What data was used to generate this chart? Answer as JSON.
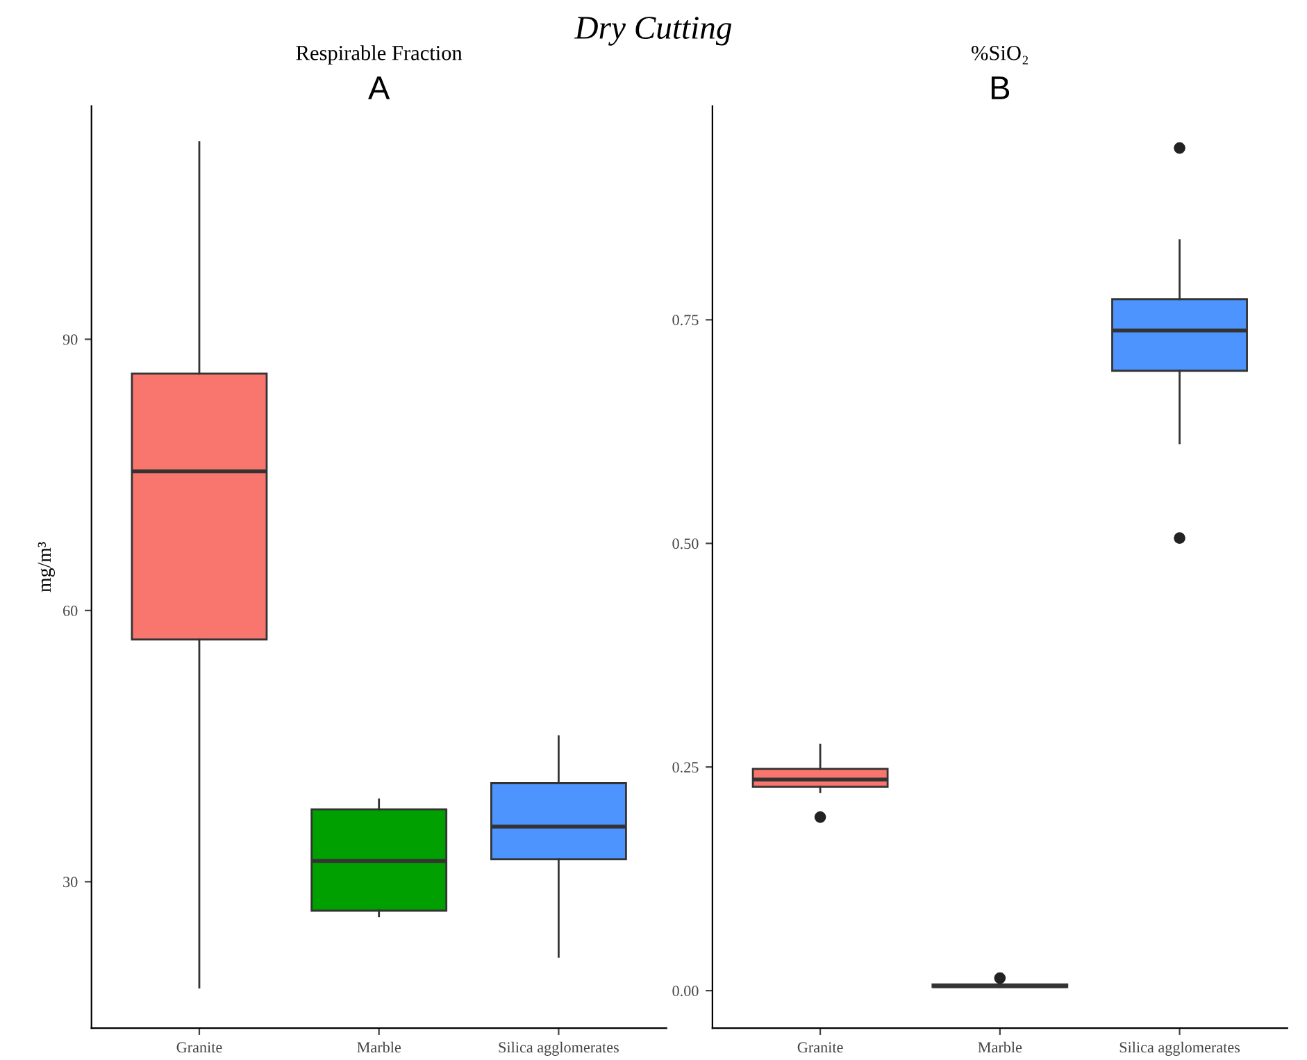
{
  "chart_data": [
    {
      "type": "box",
      "title": "Respirable Fraction",
      "subtitle": "A",
      "ylabel": "mg/m³",
      "annotations": [
        "Dry Cutting"
      ],
      "categories": [
        "Granite",
        "Marble",
        "Silica agglomerates"
      ],
      "colors": [
        "#f8766d",
        "#00a000",
        "#4d94ff"
      ],
      "boxes": [
        {
          "low": 18.3,
          "q1": 56.8,
          "median": 75.4,
          "q3": 86.2,
          "high": 111.8
        },
        {
          "low": 26.2,
          "q1": 26.8,
          "median": 32.3,
          "q3": 38.0,
          "high": 39.1
        },
        {
          "low": 21.7,
          "q1": 32.5,
          "median": 36.1,
          "q3": 40.9,
          "high": 46.1
        }
      ],
      "ylim": [
        13.8,
        115.8
      ],
      "yticks": [
        30,
        60,
        90
      ],
      "grid": false
    },
    {
      "type": "box",
      "title": "%SiO₂",
      "subtitle": "B",
      "categories": [
        "Granite",
        "Marble",
        "Silica agglomerates"
      ],
      "colors": [
        "#f8766d",
        "#00a000",
        "#4d94ff"
      ],
      "boxes": [
        {
          "low": 0.222,
          "q1": 0.228,
          "median": 0.236,
          "q3": 0.248,
          "high": 0.275,
          "outliers": [
            0.194
          ]
        },
        {
          "low": 0.004,
          "q1": 0.004,
          "median": 0.005,
          "q3": 0.007,
          "high": 0.007,
          "outliers": [
            0.014
          ]
        },
        {
          "low": 0.612,
          "q1": 0.693,
          "median": 0.738,
          "q3": 0.773,
          "high": 0.839,
          "outliers": [
            0.942,
            0.506
          ]
        }
      ],
      "ylim": [
        -0.042,
        0.989
      ],
      "yticks": [
        {
          "value": 0,
          "label": "0.00"
        },
        0.25,
        {
          "value": 0.5,
          "label": "0.50"
        },
        0.75
      ],
      "grid": false
    }
  ]
}
